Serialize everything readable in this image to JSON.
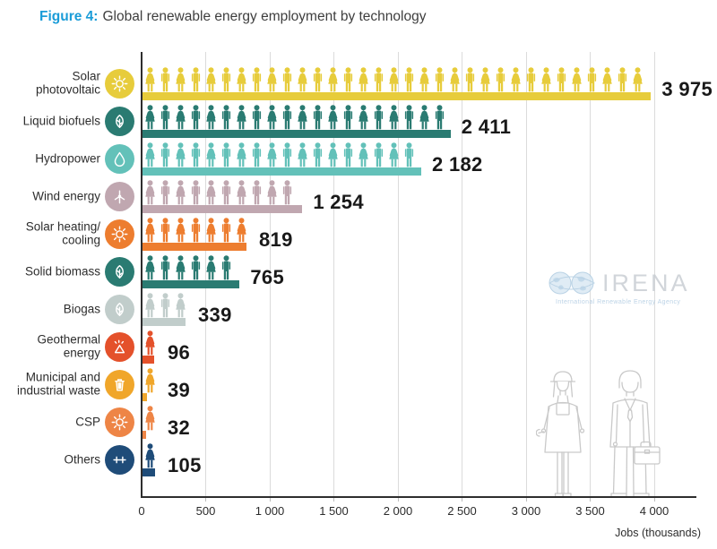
{
  "title": {
    "figure_label": "Figure 4:",
    "text": "Global renewable energy employment by technology"
  },
  "axis": {
    "tick_values": [
      0,
      500,
      1000,
      1500,
      2000,
      2500,
      3000,
      3500,
      4000
    ],
    "tick_labels": [
      "0",
      "500",
      "1 000",
      "1 500",
      "2 000",
      "2 500",
      "3 000",
      "3 500",
      "4 000"
    ],
    "label": "Jobs (thousands)",
    "max": 4000
  },
  "watermark": {
    "name": "IRENA",
    "subtitle": "International Renewable Energy Agency"
  },
  "rows": [
    {
      "label_lines": [
        "Solar",
        "photovoltaic"
      ],
      "icon": "sun-icon",
      "color": "#e7cc3b",
      "value": 3975,
      "display": "3 975"
    },
    {
      "label_lines": [
        "Liquid biofuels"
      ],
      "icon": "biofuel-leaf-icon",
      "color": "#2a7b72",
      "value": 2411,
      "display": "2 411"
    },
    {
      "label_lines": [
        "Hydropower"
      ],
      "icon": "water-drop-icon",
      "color": "#63c1b9",
      "value": 2182,
      "display": "2 182"
    },
    {
      "label_lines": [
        "Wind energy"
      ],
      "icon": "wind-turbine-icon",
      "color": "#c0a7b0",
      "value": 1254,
      "display": "1 254"
    },
    {
      "label_lines": [
        "Solar heating/",
        "cooling"
      ],
      "icon": "sun-icon",
      "color": "#ed7d2f",
      "value": 819,
      "display": "819"
    },
    {
      "label_lines": [
        "Solid biomass"
      ],
      "icon": "leaf-icon",
      "color": "#2a7b72",
      "value": 765,
      "display": "765"
    },
    {
      "label_lines": [
        "Biogas"
      ],
      "icon": "leaf-icon",
      "color": "#c1cdcb",
      "value": 339,
      "display": "339"
    },
    {
      "label_lines": [
        "Geothermal",
        "energy"
      ],
      "icon": "geothermal-geyser-icon",
      "color": "#e4512b",
      "value": 96,
      "display": "96"
    },
    {
      "label_lines": [
        "Municipal and",
        "industrial waste"
      ],
      "icon": "trash-bin-icon",
      "color": "#f0a62a",
      "value": 39,
      "display": "39"
    },
    {
      "label_lines": [
        "CSP"
      ],
      "icon": "sun-icon",
      "color": "#ee8546",
      "value": 32,
      "display": "32"
    },
    {
      "label_lines": [
        "Others"
      ],
      "icon": "plus-plus-icon",
      "color": "#1f4c79",
      "value": 105,
      "display": "105"
    }
  ],
  "chart_data": {
    "type": "bar",
    "style": "pictogram",
    "orientation": "horizontal",
    "title": "Figure 4: Global renewable energy employment by technology",
    "categories": [
      "Solar photovoltaic",
      "Liquid biofuels",
      "Hydropower",
      "Wind energy",
      "Solar heating/cooling",
      "Solid biomass",
      "Biogas",
      "Geothermal energy",
      "Municipal and industrial waste",
      "CSP",
      "Others"
    ],
    "values": [
      3975,
      2411,
      2182,
      1254,
      819,
      765,
      339,
      96,
      39,
      32,
      105
    ],
    "colors": [
      "#e7cc3b",
      "#2a7b72",
      "#63c1b9",
      "#c0a7b0",
      "#ed7d2f",
      "#2a7b72",
      "#c1cdcb",
      "#e4512b",
      "#f0a62a",
      "#ee8546",
      "#1f4c79"
    ],
    "xlabel": "Jobs (thousands)",
    "xlim": [
      0,
      4000
    ],
    "xticks": [
      0,
      500,
      1000,
      1500,
      2000,
      2500,
      3000,
      3500,
      4000
    ],
    "grid": true,
    "legend": false
  }
}
